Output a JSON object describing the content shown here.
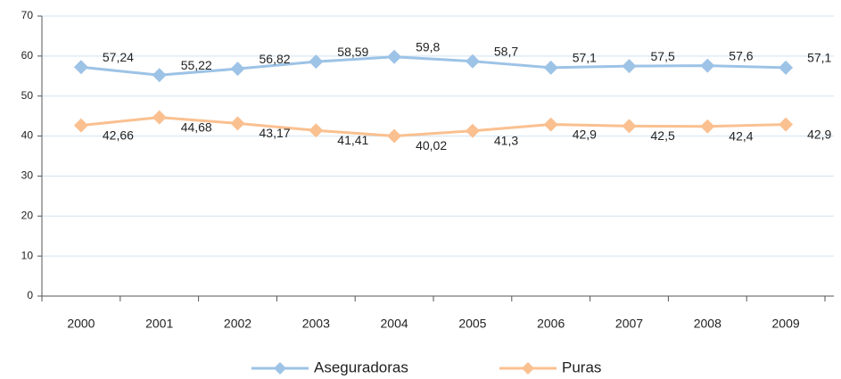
{
  "chart_data": {
    "type": "line",
    "categories": [
      "2000",
      "2001",
      "2002",
      "2003",
      "2004",
      "2005",
      "2006",
      "2007",
      "2008",
      "2009"
    ],
    "series": [
      {
        "name": "Aseguradoras",
        "color": "#9dc3e6",
        "values": [
          57.24,
          55.22,
          56.82,
          58.59,
          59.8,
          58.7,
          57.1,
          57.5,
          57.6,
          57.1
        ],
        "value_labels": [
          "57,24",
          "55,22",
          "56,82",
          "58,59",
          "59,8",
          "58,7",
          "57,1",
          "57,5",
          "57,6",
          "57,1"
        ]
      },
      {
        "name": "Puras",
        "color": "#fac090",
        "values": [
          42.66,
          44.68,
          43.17,
          41.41,
          40.02,
          41.3,
          42.9,
          42.5,
          42.4,
          42.9
        ],
        "value_labels": [
          "42,66",
          "44,68",
          "43,17",
          "41,41",
          "40,02",
          "41,3",
          "42,9",
          "42,5",
          "42,4",
          "42,9"
        ]
      }
    ],
    "ylim": [
      0,
      70
    ],
    "yticks": [
      0,
      10,
      20,
      30,
      40,
      50,
      60,
      70
    ],
    "grid": true,
    "legend": "bottom"
  }
}
